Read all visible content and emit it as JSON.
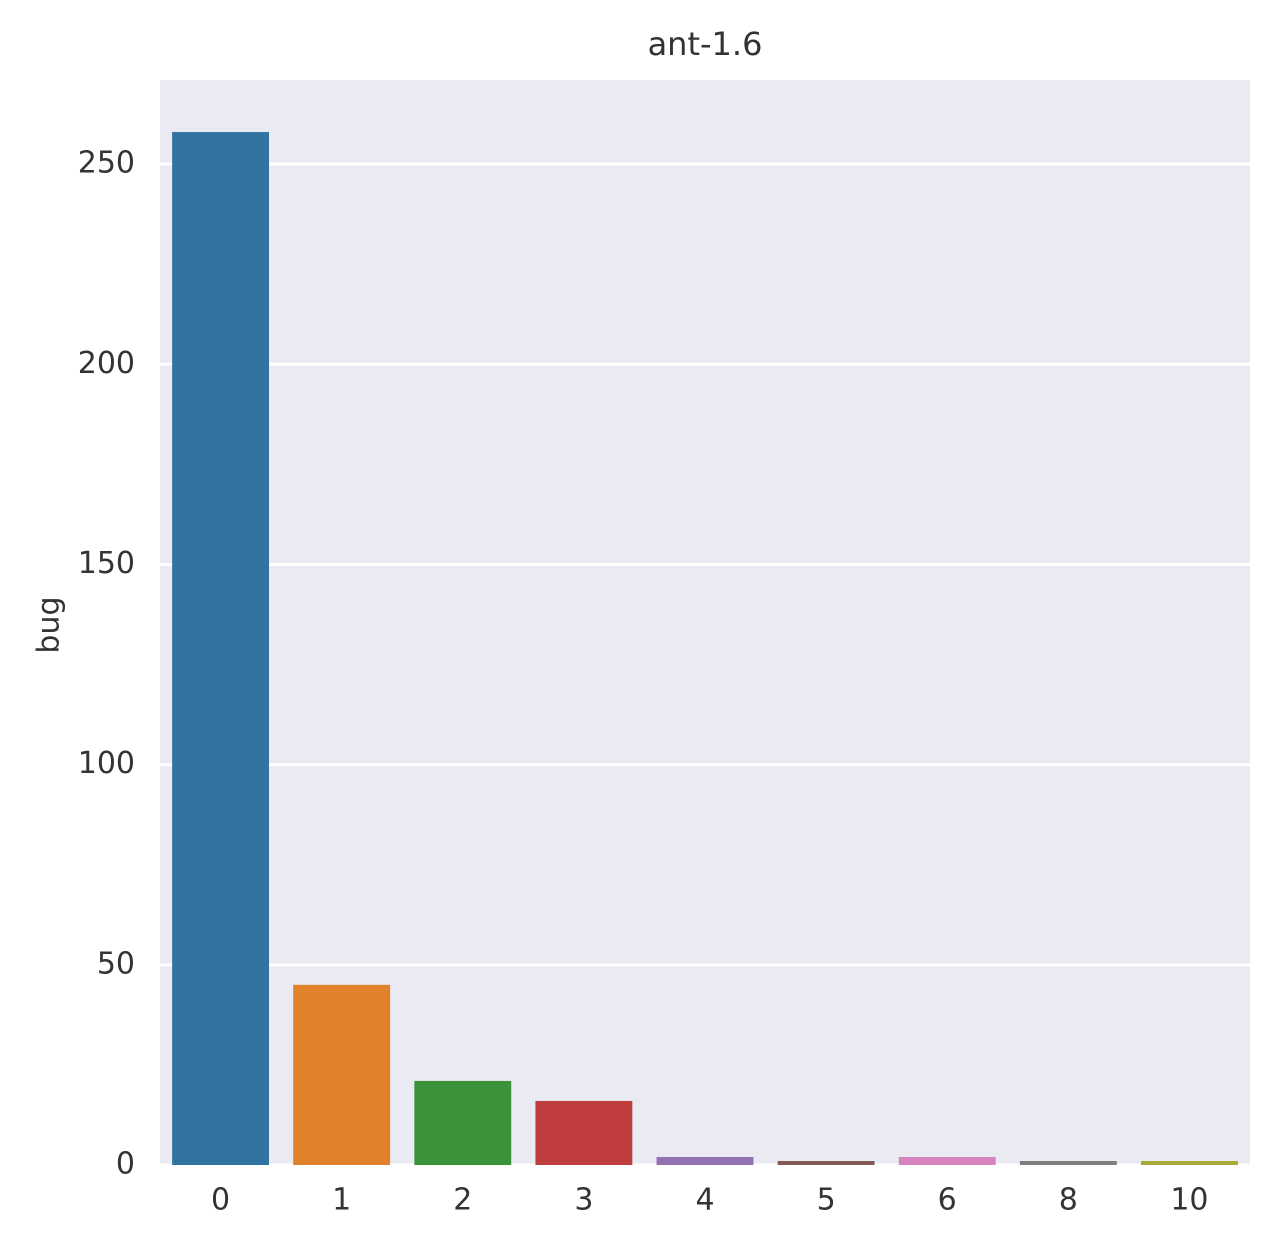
{
  "chart_data": {
    "type": "bar",
    "title": "ant-1.6",
    "y_label": "bug",
    "categories": [
      "0",
      "1",
      "2",
      "3",
      "4",
      "5",
      "6",
      "8",
      "10"
    ],
    "values": [
      258,
      45,
      21,
      16,
      2,
      1,
      2,
      1,
      1
    ],
    "colors": [
      "#3274a1",
      "#e1812c",
      "#3a923a",
      "#c03d3e",
      "#9372b2",
      "#845b53",
      "#d684bd",
      "#7f7f7f",
      "#a9aa35"
    ],
    "ylim": [
      0,
      271
    ],
    "yticks": [
      0,
      50,
      100,
      150,
      200,
      250
    ],
    "grid": true
  }
}
